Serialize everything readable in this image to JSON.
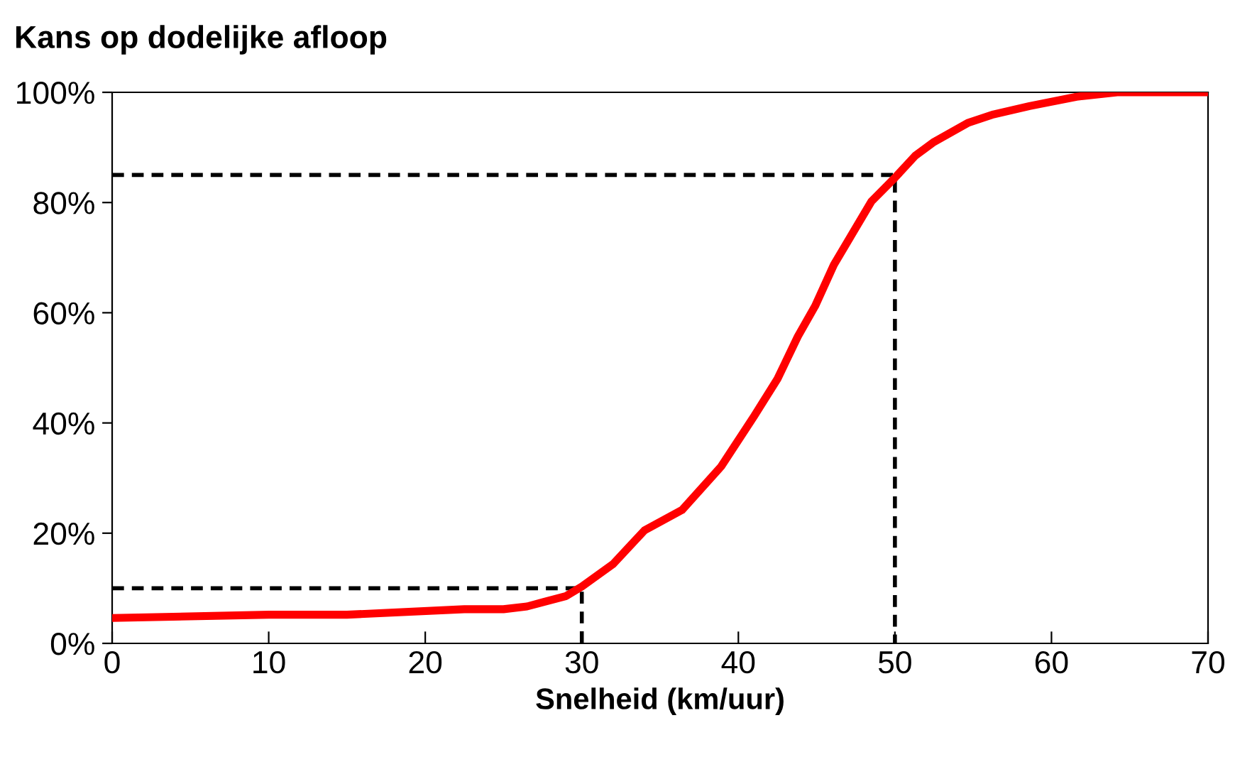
{
  "chart_data": {
    "type": "line",
    "title": "Kans op dodelijke afloop",
    "xlabel": "Snelheid (km/uur)",
    "series": [
      {
        "color": "#ff0000",
        "line_style": "solid",
        "x": [
          0,
          10,
          15,
          22.5,
          25,
          26.5,
          29,
          30,
          32,
          34,
          36.4,
          38.9,
          41,
          42.5,
          43.8,
          44.9,
          46.1,
          48.5,
          50,
          51.3,
          52.5,
          54.7,
          56.3,
          58.6,
          61.6,
          64.2,
          70
        ],
        "values": [
          4.6,
          5.2,
          5.2,
          6.2,
          6.2,
          6.7,
          8.6,
          10.3,
          14.4,
          20.5,
          24.2,
          32.1,
          41.2,
          48,
          55.7,
          61.2,
          68.7,
          80.2,
          84.5,
          88.5,
          91,
          94.5,
          96,
          97.5,
          99.2,
          100,
          100
        ]
      },
      {
        "color": "#000000",
        "line_style": "dashed",
        "x": [
          0,
          30,
          30
        ],
        "values": [
          10,
          10,
          0
        ]
      },
      {
        "color": "#000000",
        "line_style": "dashed",
        "x": [
          0,
          50,
          50
        ],
        "values": [
          85,
          85,
          0
        ]
      }
    ],
    "xlim": [
      0,
      70
    ],
    "xticks": [
      0,
      10,
      20,
      30,
      40,
      50,
      60,
      70
    ],
    "ylim": [
      0,
      100
    ],
    "yticks": [
      {
        "value": 0,
        "label": "0%"
      },
      {
        "value": 20,
        "label": "20%"
      },
      {
        "value": 40,
        "label": "40%"
      },
      {
        "value": 60,
        "label": "60%"
      },
      {
        "value": 80,
        "label": "80%"
      },
      {
        "value": 100,
        "label": "100%"
      }
    ],
    "grid": false,
    "legend": false
  }
}
